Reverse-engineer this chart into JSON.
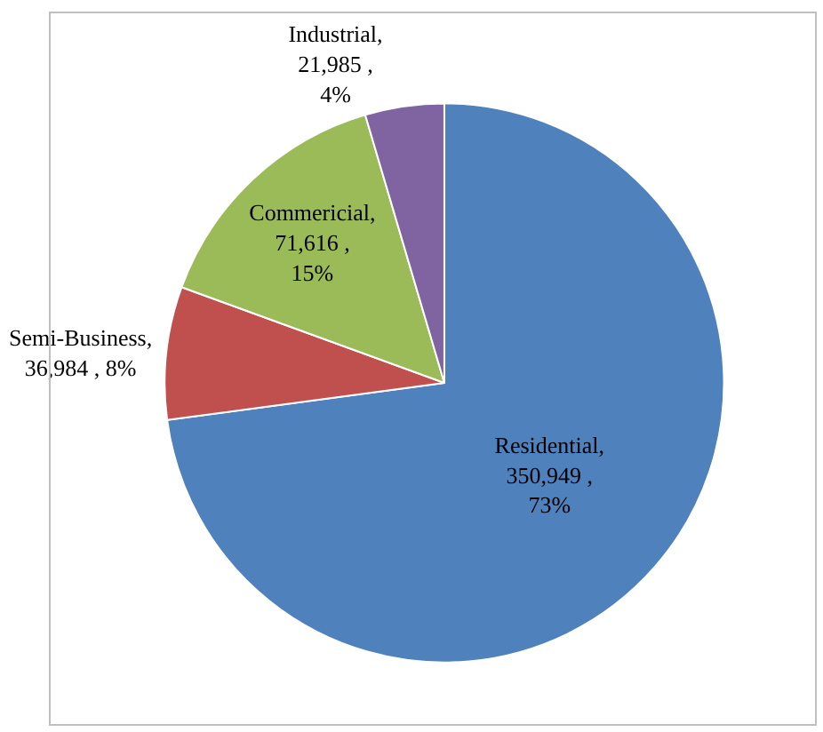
{
  "chart_data": {
    "type": "pie",
    "categories": [
      "Residential",
      "Semi-Business",
      "Commericial",
      "Industrial"
    ],
    "values": [
      350949,
      36984,
      71616,
      21985
    ],
    "colors": [
      "#4f81bd",
      "#c0504d",
      "#9bbb59",
      "#8064a2"
    ],
    "value_labels": [
      ",\n350,949 ,\n73%",
      ",\n36,984 , 8%",
      ",\n71,616 ,\n15%",
      ",\n21,985 ,\n4%"
    ],
    "legend": false
  }
}
